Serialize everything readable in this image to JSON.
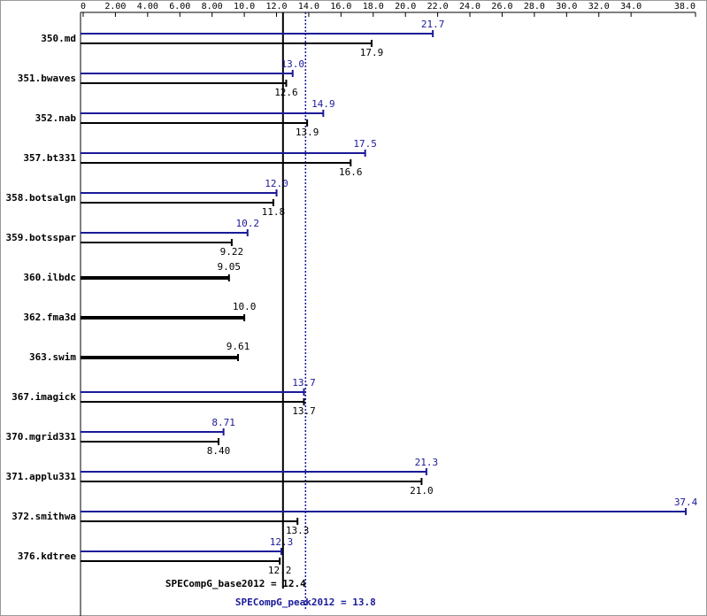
{
  "chart_data": {
    "type": "bar",
    "orientation": "horizontal",
    "categories": [
      "350.md",
      "351.bwaves",
      "352.nab",
      "357.bt331",
      "358.botsalgn",
      "359.botsspar",
      "360.ilbdc",
      "362.fma3d",
      "363.swim",
      "367.imagick",
      "370.mgrid331",
      "371.applu331",
      "372.smithwa",
      "376.kdtree"
    ],
    "series": [
      {
        "color": "#1a1a99",
        "values": [
          21.7,
          13.0,
          14.9,
          17.5,
          12.0,
          10.2,
          null,
          null,
          null,
          13.7,
          8.71,
          21.3,
          37.4,
          12.3
        ],
        "value_labels": [
          "21.7",
          "13.0",
          "14.9",
          "17.5",
          "12.0",
          "10.2",
          null,
          null,
          null,
          "13.7",
          "8.71",
          "21.3",
          "37.4",
          "12.3"
        ]
      },
      {
        "color": "#000000",
        "values": [
          17.9,
          12.6,
          13.9,
          16.6,
          11.8,
          9.22,
          9.05,
          10.0,
          9.61,
          13.7,
          8.4,
          21.0,
          13.3,
          12.2
        ],
        "value_labels": [
          "17.9",
          "12.6",
          "13.9",
          "16.6",
          "11.8",
          "9.22",
          "9.05",
          "10.0",
          "9.61",
          "13.7",
          "8.40",
          "21.0",
          "13.3",
          "12.2"
        ]
      }
    ],
    "xlim": [
      0,
      38
    ],
    "xticks": [
      0,
      {
        "value": 2,
        "label": "2.00"
      },
      {
        "value": 4,
        "label": "4.00"
      },
      {
        "value": 6,
        "label": "6.00"
      },
      {
        "value": 8,
        "label": "8.00"
      },
      {
        "value": 10,
        "label": "10.0"
      },
      {
        "value": 12,
        "label": "12.0"
      },
      {
        "value": 14,
        "label": "14.0"
      },
      {
        "value": 16,
        "label": "16.0"
      },
      {
        "value": 18,
        "label": "18.0"
      },
      {
        "value": 20,
        "label": "20.0"
      },
      {
        "value": 22,
        "label": "22.0"
      },
      {
        "value": 24,
        "label": "24.0"
      },
      {
        "value": 26,
        "label": "26.0"
      },
      {
        "value": 28,
        "label": "28.0"
      },
      {
        "value": 30,
        "label": "30.0"
      },
      {
        "value": 32,
        "label": "32.0"
      },
      {
        "value": 34,
        "label": "34.0"
      },
      {
        "value": 38,
        "label": "38.0"
      }
    ],
    "reference_lines": [
      {
        "value": 12.4,
        "label": "SPECompG_base2012 = 12.4",
        "color": "#000000",
        "style": "solid"
      },
      {
        "value": 13.8,
        "label": "SPECompG_peak2012 = 13.8",
        "color": "#1a1a99",
        "style": "dotted"
      }
    ]
  }
}
